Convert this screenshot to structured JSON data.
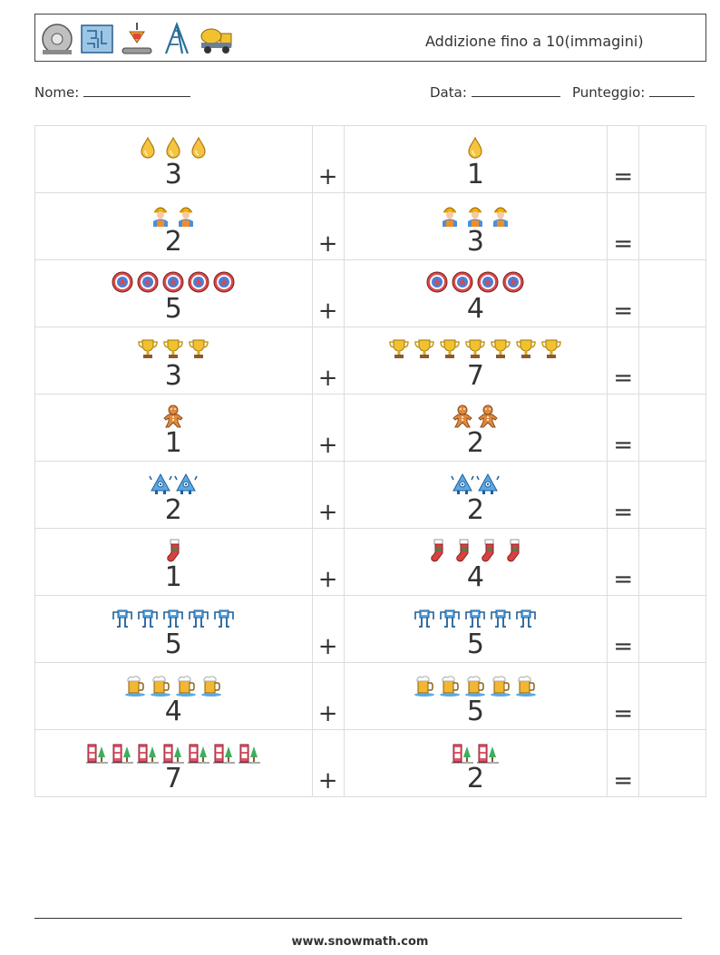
{
  "header": {
    "title": "Addizione fino a 10(immagini)",
    "icons": [
      "saw-blade-icon",
      "maze-icon",
      "crane-hook-icon",
      "ladder-icon",
      "cement-truck-icon"
    ]
  },
  "meta": {
    "name_label": "Nome:",
    "date_label": "Data:",
    "score_label": "Punteggio:"
  },
  "operators": {
    "plus": "+",
    "equals": "="
  },
  "problems": [
    {
      "a": 3,
      "b": 1,
      "a_icon": "drop-icon",
      "b_icon": "drop-icon"
    },
    {
      "a": 2,
      "b": 3,
      "a_icon": "worker-icon",
      "b_icon": "worker-icon"
    },
    {
      "a": 5,
      "b": 4,
      "a_icon": "poker-chip-icon",
      "b_icon": "poker-chip-icon"
    },
    {
      "a": 3,
      "b": 7,
      "a_icon": "trophy-icon",
      "b_icon": "trophy-icon"
    },
    {
      "a": 1,
      "b": 2,
      "a_icon": "gingerbread-icon",
      "b_icon": "gingerbread-icon"
    },
    {
      "a": 2,
      "b": 2,
      "a_icon": "robot-icon",
      "b_icon": "robot-icon"
    },
    {
      "a": 1,
      "b": 4,
      "a_icon": "stocking-icon",
      "b_icon": "stocking-icon"
    },
    {
      "a": 5,
      "b": 5,
      "a_icon": "mech-icon",
      "b_icon": "mech-icon"
    },
    {
      "a": 4,
      "b": 5,
      "a_icon": "beer-mug-icon",
      "b_icon": "beer-mug-icon"
    },
    {
      "a": 7,
      "b": 2,
      "a_icon": "phone-booth-icon",
      "b_icon": "phone-booth-icon"
    }
  ],
  "footer": {
    "url": "www.snowmath.com"
  }
}
